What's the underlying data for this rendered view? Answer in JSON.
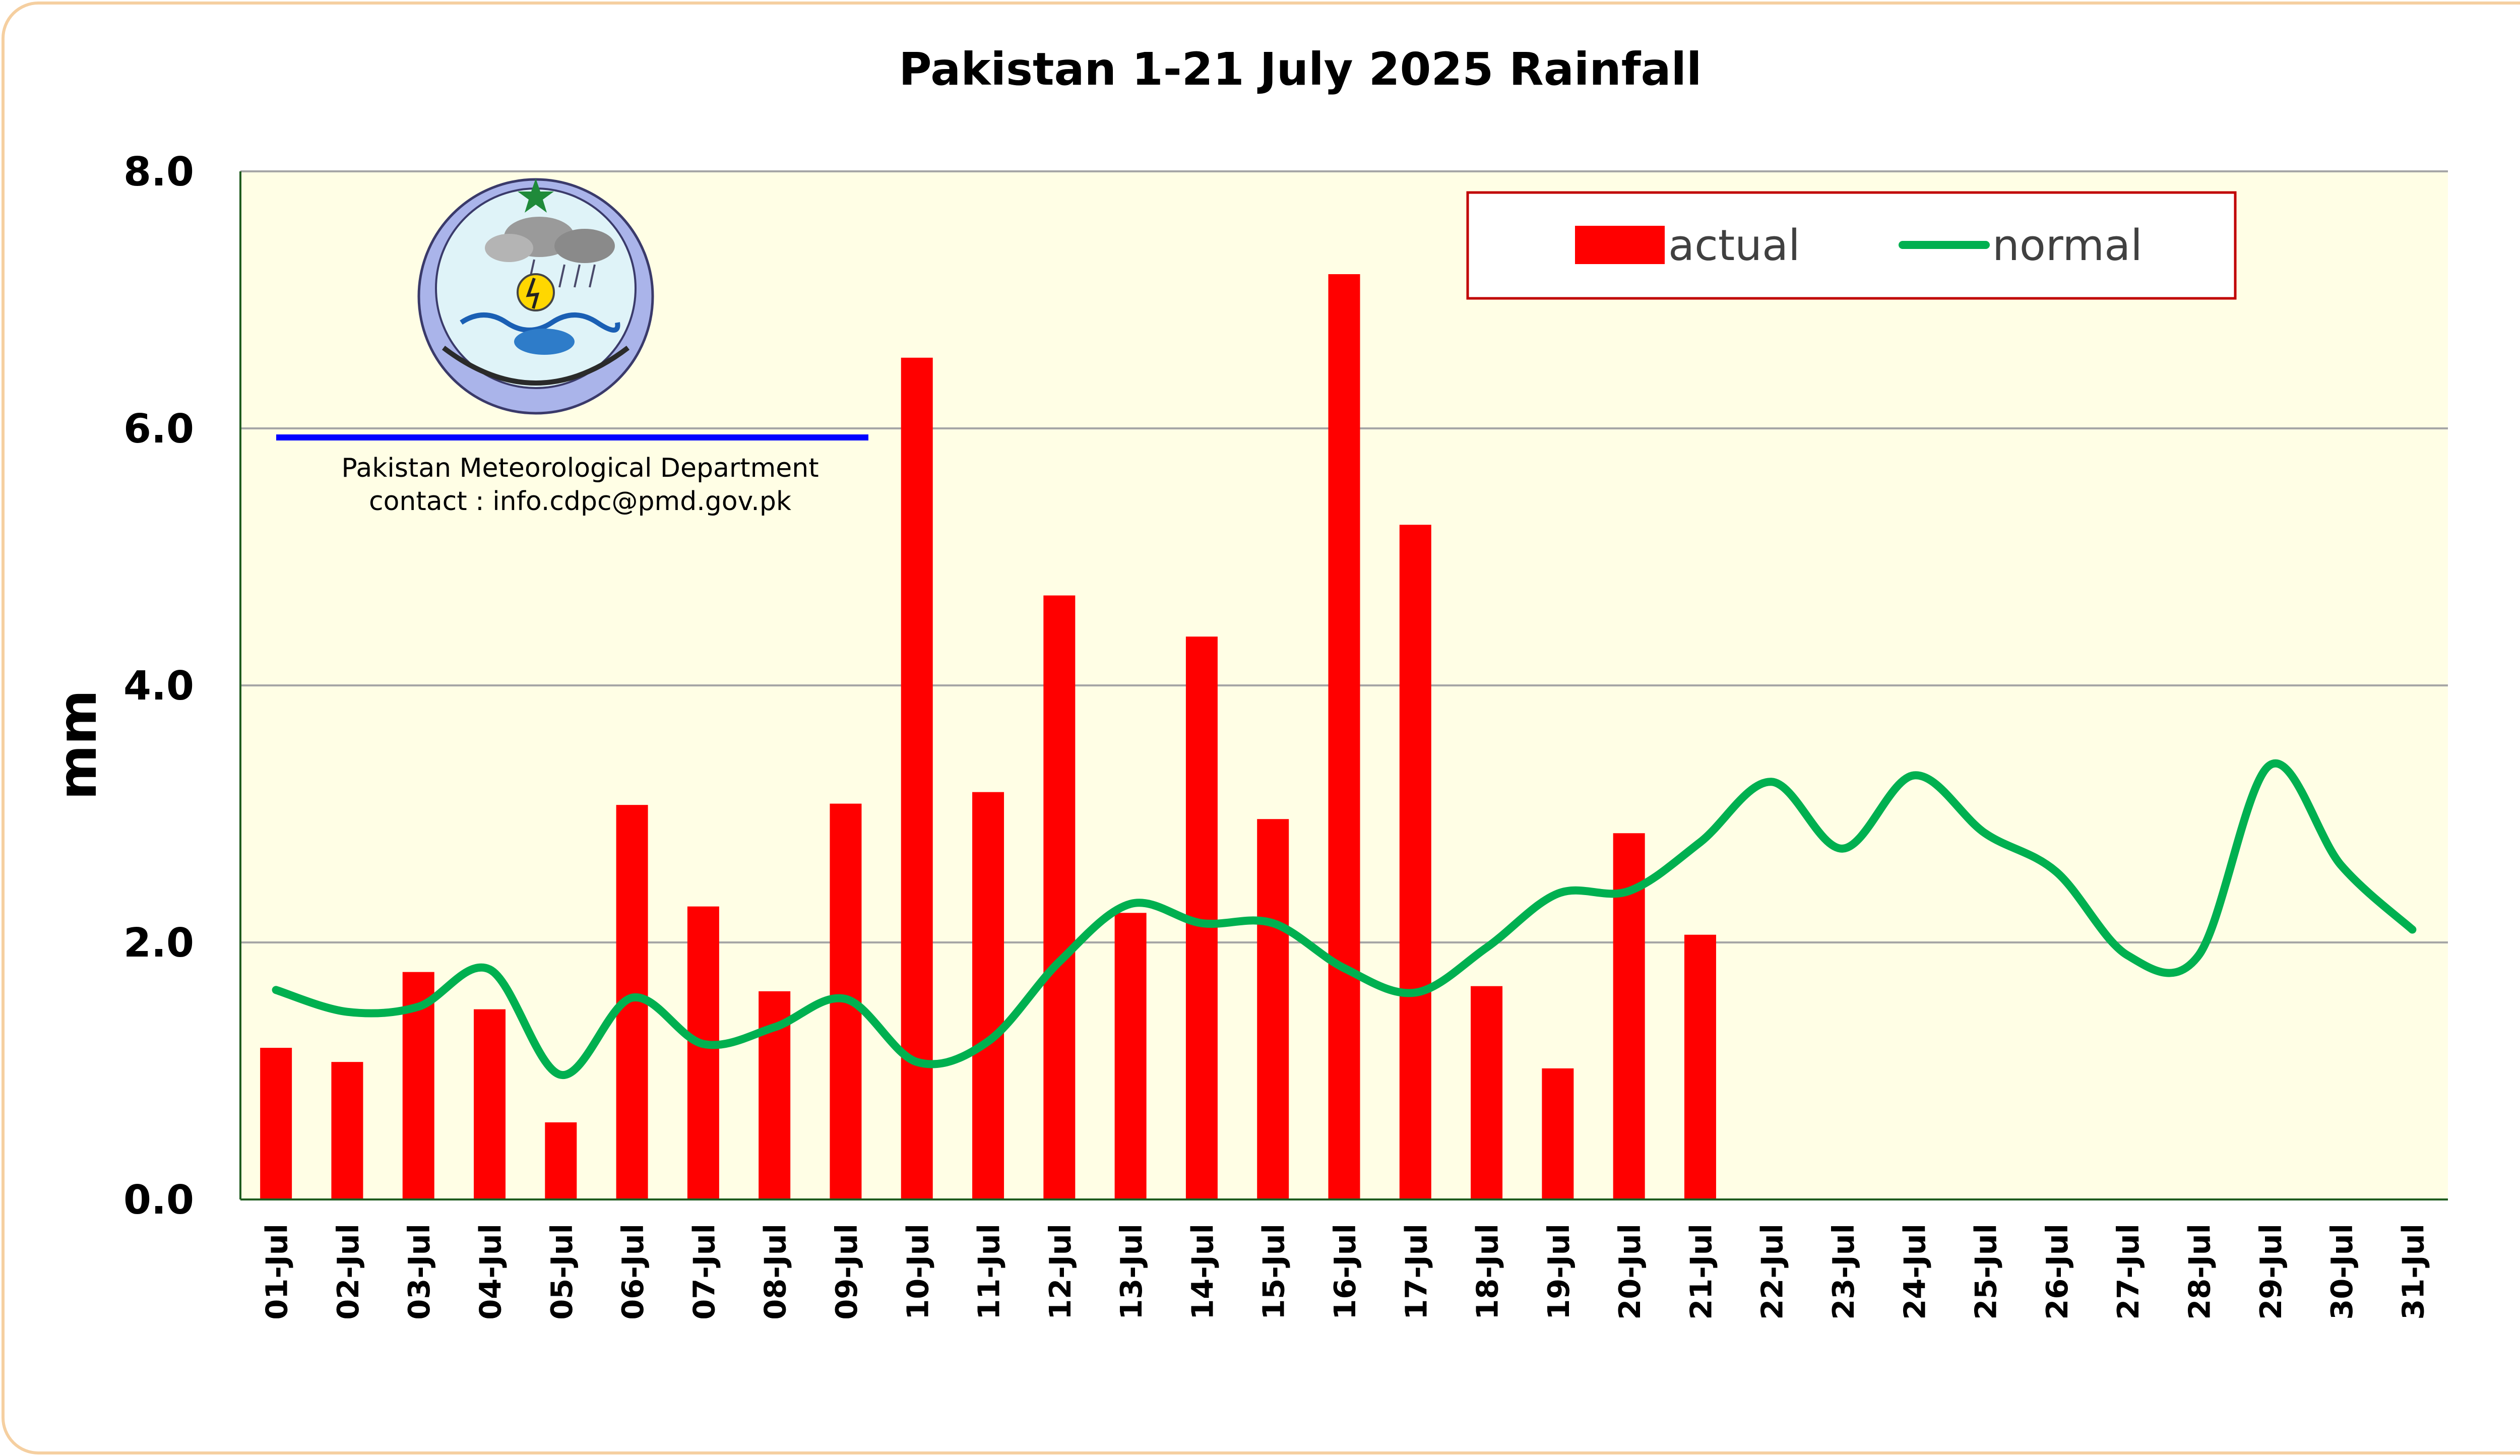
{
  "chart_data": {
    "type": "bar",
    "title": "Pakistan 1-21 July 2025 Rainfall",
    "ylabel": "mm",
    "xlabel": "",
    "ylim": [
      0,
      8
    ],
    "yticks": [
      "0.0",
      "2.0",
      "4.0",
      "6.0",
      "8.0"
    ],
    "grid": true,
    "legend_position": "top-right",
    "categories": [
      "01-Jul",
      "02-Jul",
      "03-Jul",
      "04-Jul",
      "05-Jul",
      "06-Jul",
      "07-Jul",
      "08-Jul",
      "09-Jul",
      "10-Jul",
      "11-Jul",
      "12-Jul",
      "13-Jul",
      "14-Jul",
      "15-Jul",
      "16-Jul",
      "17-Jul",
      "18-Jul",
      "19-Jul",
      "20-Jul",
      "21-Jul",
      "22-Jul",
      "23-Jul",
      "24-Jul",
      "25-Jul",
      "26-Jul",
      "27-Jul",
      "28-Jul",
      "29-Jul",
      "30-Jul",
      "31-Jul"
    ],
    "series": [
      {
        "name": "actual",
        "type": "bar",
        "color": "#ff0000",
        "values": [
          1.18,
          1.07,
          1.77,
          1.48,
          0.6,
          3.07,
          2.28,
          1.62,
          3.08,
          6.55,
          3.17,
          4.7,
          2.23,
          4.38,
          2.96,
          7.2,
          5.25,
          1.66,
          1.02,
          2.85,
          2.06,
          null,
          null,
          null,
          null,
          null,
          null,
          null,
          null,
          null,
          null
        ]
      },
      {
        "name": "normal",
        "type": "line",
        "color": "#00b050",
        "values": [
          1.63,
          1.46,
          1.5,
          1.79,
          0.97,
          1.57,
          1.21,
          1.34,
          1.56,
          1.07,
          1.23,
          1.85,
          2.3,
          2.15,
          2.15,
          1.8,
          1.61,
          1.96,
          2.38,
          2.4,
          2.78,
          3.25,
          2.73,
          3.3,
          2.85,
          2.55,
          1.9,
          1.9,
          3.38,
          2.6,
          2.1
        ]
      }
    ]
  },
  "logo": {
    "caption_line1": "Pakistan Meteorological Department",
    "caption_line2": "contact : info.cdpc@pmd.gov.pk"
  }
}
